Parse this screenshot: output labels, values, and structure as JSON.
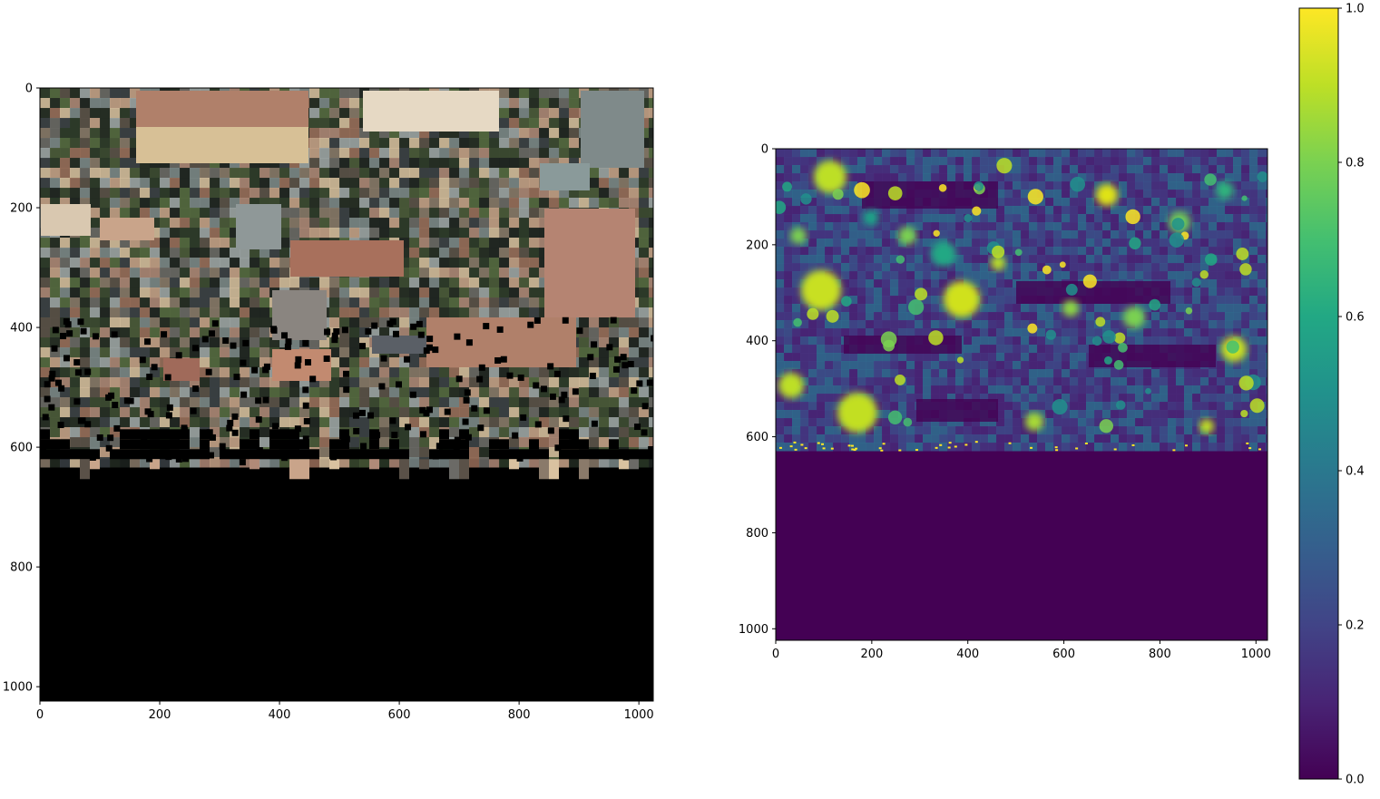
{
  "chart_data": [
    {
      "type": "heatmap",
      "content": "aerial RGB image (rows below ~620 are black / no data)",
      "x": [
        0,
        200,
        400,
        600,
        800,
        1000
      ],
      "xtick_labels": [
        "0",
        "200",
        "400",
        "600",
        "800",
        "1000"
      ],
      "y": [
        0,
        200,
        400,
        600,
        800,
        1000
      ],
      "ytick_labels": [
        "0",
        "200",
        "400",
        "600",
        "800",
        "1000"
      ],
      "xlim": [
        0,
        1024
      ],
      "ylim": [
        1024,
        0
      ],
      "no_data_from_row": 620,
      "title": "",
      "xlabel": "",
      "ylabel": ""
    },
    {
      "type": "heatmap",
      "content": "confidence map in [0, 1], viridis; rows below ~620 are 0",
      "x": [
        0,
        200,
        400,
        600,
        800,
        1000
      ],
      "xtick_labels": [
        "0",
        "200",
        "400",
        "600",
        "800",
        "1000"
      ],
      "y": [
        0,
        200,
        400,
        600,
        800,
        1000
      ],
      "ytick_labels": [
        "0",
        "200",
        "400",
        "600",
        "800",
        "1000"
      ],
      "xlim": [
        0,
        1024
      ],
      "ylim": [
        1024,
        0
      ],
      "no_data_from_row": 620,
      "colormap": "viridis",
      "title": "",
      "xlabel": "",
      "ylabel": "",
      "colorbar": {
        "vmin": 0.0,
        "vmax": 1.0,
        "ticks": [
          0.0,
          0.2,
          0.4,
          0.6,
          0.8,
          1.0
        ],
        "tick_labels": [
          "0.0",
          "0.2",
          "0.4",
          "0.6",
          "0.8",
          "1.0"
        ]
      }
    }
  ]
}
